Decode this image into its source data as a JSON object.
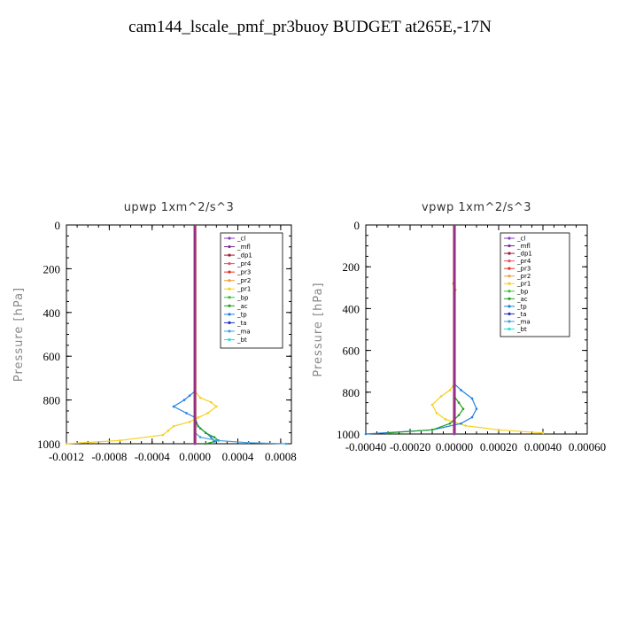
{
  "title": "cam144_lscale_pmf_pr3buoy  BUDGET at265E,-17N",
  "colors": {
    "_cl": "#8a3fbf",
    "_mfl": "#7a2a9a",
    "_dp1": "#a0183a",
    "_pr4": "#e8506a",
    "_pr3": "#e8302a",
    "_pr2": "#f0a040",
    "_pr1": "#f5d020",
    "_bp": "#40c040",
    "_ac": "#20a020",
    "_tp": "#2080e0",
    "_ta": "#2030c0",
    "_ma": "#40a0e0",
    "_bt": "#20e0e0"
  },
  "chart_data": [
    {
      "type": "line",
      "title": "upwp   1xm^2/s^3",
      "ylabel": "Pressure  [hPa]",
      "xlim": [
        -0.0012,
        0.0009
      ],
      "ylim": [
        1000,
        0
      ],
      "xticks": [
        -0.0012,
        -0.0008,
        -0.0004,
        0.0,
        0.0004,
        0.0008
      ],
      "xtick_labels": [
        "-0.0012",
        "-0.0008",
        "-0.0004",
        "0.0000",
        "0.0004",
        "0.0008"
      ],
      "yticks": [
        0,
        200,
        400,
        600,
        800,
        1000
      ],
      "ytick_labels": [
        "0",
        "200",
        "400",
        "600",
        "800",
        "1000"
      ],
      "legend_position": "top-right",
      "legend": [
        "_cl",
        "_mfl",
        "_dp1",
        "_pr4",
        "_pr3",
        "_pr2",
        "_pr1",
        "_bp",
        "_ac",
        "_tp",
        "_ta",
        "_ma",
        "_bt"
      ],
      "series": [
        {
          "name": "_pr1",
          "x": [
            0,
            0,
            5e-05,
            0.00015,
            0.0002,
            0.00012,
            3e-05,
            -5e-05,
            -0.0002,
            -0.00025,
            -0.0003,
            -0.0007,
            -0.0012
          ],
          "y": [
            0,
            760,
            790,
            810,
            830,
            860,
            880,
            900,
            920,
            940,
            960,
            985,
            1000
          ]
        },
        {
          "name": "_tp",
          "x": [
            0,
            0,
            -5e-05,
            -0.0001,
            -0.0002,
            -8e-05,
            0,
            3e-05,
            0.0001,
            0.00015,
            0.00018
          ],
          "y": [
            0,
            760,
            780,
            800,
            830,
            860,
            880,
            920,
            950,
            970,
            990
          ]
        },
        {
          "name": "_ac",
          "x": [
            0,
            0,
            5e-05,
            0.0001,
            0.00018,
            0.00022,
            0.0001
          ],
          "y": [
            0,
            900,
            930,
            950,
            970,
            985,
            1000
          ]
        },
        {
          "name": "_ma",
          "x": [
            0,
            0,
            5e-05,
            0.0002,
            0.0005,
            0.00085
          ],
          "y": [
            0,
            950,
            970,
            985,
            995,
            1000
          ]
        },
        {
          "name": "_dp1",
          "x": [
            0,
            0
          ],
          "y": [
            0,
            1000
          ]
        },
        {
          "name": "_cl",
          "x": [
            0,
            0
          ],
          "y": [
            0,
            1000
          ]
        }
      ]
    },
    {
      "type": "line",
      "title": "vpwp   1xm^2/s^3",
      "ylabel": "Pressure  [hPa]",
      "xlim": [
        -0.0004,
        0.0006
      ],
      "ylim": [
        1000,
        0
      ],
      "xticks": [
        -0.0004,
        -0.0002,
        0.0,
        0.0002,
        0.0004,
        0.0006
      ],
      "xtick_labels": [
        "-0.00040",
        "-0.00020",
        "0.00000",
        "0.00020",
        "0.00040",
        "0.00060"
      ],
      "yticks": [
        0,
        200,
        400,
        600,
        800,
        1000
      ],
      "ytick_labels": [
        "0",
        "200",
        "400",
        "600",
        "800",
        "1000"
      ],
      "legend_position": "top-right",
      "legend": [
        "_cl",
        "_mfl",
        "_dp1",
        "_pr4",
        "_pr3",
        "_pr2",
        "_pr1",
        "_bp",
        "_ac",
        "_tp",
        "_ta",
        "_ma",
        "_bt"
      ],
      "series": [
        {
          "name": "_pr1",
          "x": [
            0,
            0,
            -2e-05,
            -6e-05,
            -0.0001,
            -8e-05,
            -4e-05,
            5e-05,
            0.0002,
            0.0004
          ],
          "y": [
            0,
            760,
            790,
            820,
            860,
            900,
            930,
            960,
            980,
            995
          ]
        },
        {
          "name": "_tp",
          "x": [
            0,
            0,
            3e-05,
            8e-05,
            0.0001,
            8e-05,
            3e-05,
            -0.0001,
            -0.0004
          ],
          "y": [
            0,
            760,
            790,
            830,
            880,
            920,
            950,
            980,
            1000
          ]
        },
        {
          "name": "_ac",
          "x": [
            0,
            0,
            2e-05,
            4e-05,
            2e-05,
            -2e-05,
            -0.0001,
            -0.0003
          ],
          "y": [
            0,
            820,
            850,
            880,
            910,
            950,
            980,
            995
          ]
        },
        {
          "name": "_pr2",
          "x": [
            0,
            0,
            -5e-06,
            5e-06,
            0
          ],
          "y": [
            0,
            250,
            280,
            310,
            340
          ]
        },
        {
          "name": "_dp1",
          "x": [
            0,
            0
          ],
          "y": [
            0,
            1000
          ]
        },
        {
          "name": "_cl",
          "x": [
            0,
            0
          ],
          "y": [
            0,
            1000
          ]
        }
      ]
    }
  ]
}
